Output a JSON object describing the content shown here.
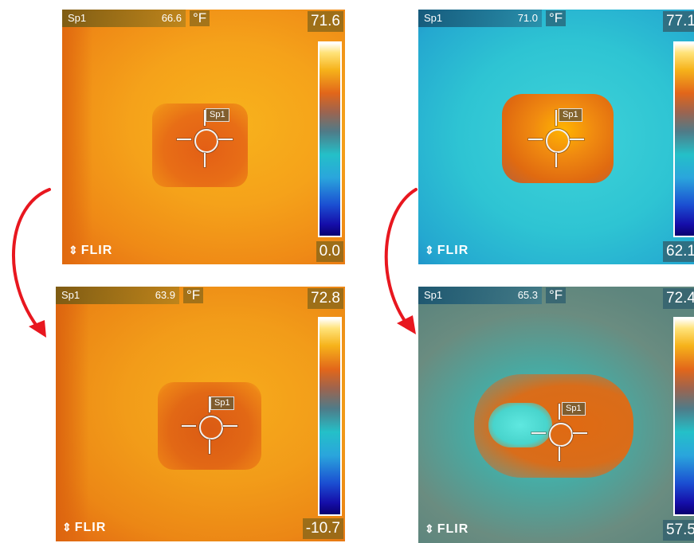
{
  "panels": [
    {
      "spot_label": "Sp1",
      "spot_value": "66.6",
      "unit": "°F",
      "scale_max": "71.6",
      "scale_min": "0.0",
      "logo": "FLIR",
      "marker_label": "Sp1",
      "palette": "iron"
    },
    {
      "spot_label": "Sp1",
      "spot_value": "71.0",
      "unit": "°F",
      "scale_max": "77.1",
      "scale_min": "62.1",
      "logo": "FLIR",
      "marker_label": "Sp1",
      "palette": "rainbow"
    },
    {
      "spot_label": "Sp1",
      "spot_value": "63.9",
      "unit": "°F",
      "scale_max": "72.8",
      "scale_min": "-10.7",
      "logo": "FLIR",
      "marker_label": "Sp1",
      "palette": "iron"
    },
    {
      "spot_label": "Sp1",
      "spot_value": "65.3",
      "unit": "°F",
      "scale_max": "72.4",
      "scale_min": "57.5",
      "logo": "FLIR",
      "marker_label": "Sp1",
      "palette": "rainbow"
    }
  ],
  "arrow_color": "#e8171f",
  "icons": [
    "flir-logo-icon",
    "crosshair-icon",
    "curved-arrow-icon"
  ]
}
